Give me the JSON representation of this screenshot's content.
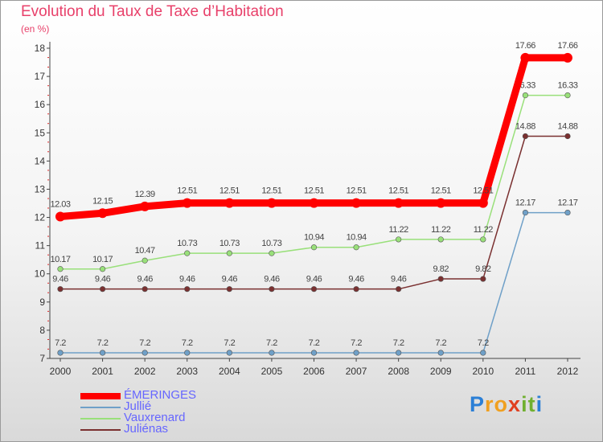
{
  "title": "Evolution du Taux de Taxe d’Habitation",
  "subtitle": "(en %)",
  "logo_letters": [
    {
      "ch": "P",
      "color": "#2b7fd6"
    },
    {
      "ch": "r",
      "color": "#f0a020"
    },
    {
      "ch": "o",
      "color": "#f0a020"
    },
    {
      "ch": "x",
      "color": "#e04020"
    },
    {
      "ch": "i",
      "color": "#70b030"
    },
    {
      "ch": "t",
      "color": "#70b030"
    },
    {
      "ch": "i",
      "color": "#2b7fd6"
    }
  ],
  "chart_data": {
    "type": "line",
    "x": [
      "2000",
      "2001",
      "2002",
      "2003",
      "2004",
      "2005",
      "2006",
      "2007",
      "2008",
      "2009",
      "2010",
      "2011",
      "2012"
    ],
    "ylim": [
      7,
      18
    ],
    "yticks": [
      "7",
      "8",
      "9",
      "10",
      "11",
      "12",
      "13",
      "14",
      "15",
      "16",
      "17",
      "18"
    ],
    "grid": false,
    "legend_position": "bottom-left",
    "series": [
      {
        "name": "ÉMERINGES",
        "color": "#ff0000",
        "values": [
          12.03,
          12.15,
          12.39,
          12.51,
          12.51,
          12.51,
          12.51,
          12.51,
          12.51,
          12.51,
          12.51,
          17.66,
          17.66
        ],
        "labels": [
          "12.03",
          "12.15",
          "12.39",
          "12.51",
          "12.51",
          "12.51",
          "12.51",
          "12.51",
          "12.51",
          "12.51",
          "12.51",
          "17.66",
          "17.66"
        ]
      },
      {
        "name": "Jullié",
        "color": "#6fa0c8",
        "values": [
          7.2,
          7.2,
          7.2,
          7.2,
          7.2,
          7.2,
          7.2,
          7.2,
          7.2,
          7.2,
          7.2,
          12.17,
          12.17
        ],
        "labels": [
          "7.2",
          "7.2",
          "7.2",
          "7.2",
          "7.2",
          "7.2",
          "7.2",
          "7.2",
          "7.2",
          "7.2",
          "7.2",
          "12.17",
          "12.17"
        ]
      },
      {
        "name": "Vauxrenard",
        "color": "#99e07a",
        "values": [
          10.17,
          10.17,
          10.47,
          10.73,
          10.73,
          10.73,
          10.94,
          10.94,
          11.22,
          11.22,
          11.22,
          16.33,
          16.33
        ],
        "labels": [
          "10.17",
          "10.17",
          "10.47",
          "10.73",
          "10.73",
          "10.73",
          "10.94",
          "10.94",
          "11.22",
          "11.22",
          "11.22",
          "16.33",
          "16.33"
        ]
      },
      {
        "name": "Juliénas",
        "color": "#7a3030",
        "values": [
          9.46,
          9.46,
          9.46,
          9.46,
          9.46,
          9.46,
          9.46,
          9.46,
          9.46,
          9.82,
          9.82,
          14.88,
          14.88
        ],
        "labels": [
          "9.46",
          "9.46",
          "9.46",
          "9.46",
          "9.46",
          "9.46",
          "9.46",
          "9.46",
          "9.46",
          "9.82",
          "9.82",
          "14.88",
          "14.88"
        ]
      }
    ]
  }
}
